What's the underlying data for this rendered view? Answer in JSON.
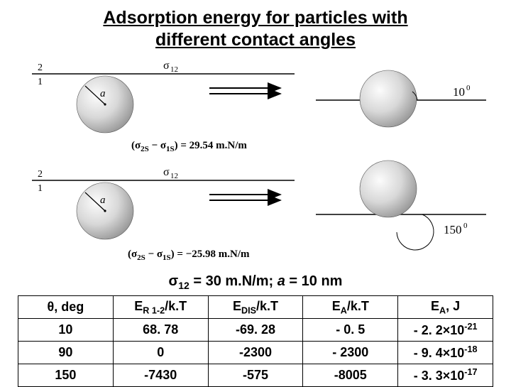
{
  "title_line1": "Adsorption energy for particles with",
  "title_line2": "different contact angles",
  "diagram": {
    "sigma_label": "σ",
    "sigma_sub": "12",
    "phase_top": "2",
    "phase_bottom": "1",
    "radius_label": "a",
    "angle_1": "10",
    "angle_1_unit": "0",
    "angle_2": "150",
    "angle_2_unit": "0",
    "eq1_lhs": "(σ",
    "eq1_2s": "2S",
    "eq1_dash": " − σ",
    "eq1_1s": "1S",
    "eq1_rhs": ") = 29.54 ",
    "eq1_unit": "m.N/m",
    "eq2_lhs": "(σ",
    "eq2_rhs": ") = −25.98 ",
    "eq2_unit": "m.N/m",
    "colors": {
      "line": "#000000",
      "sphere_fill_light": "#fcfcfc",
      "sphere_fill_dark": "#a8a8a8",
      "bg": "#ffffff"
    }
  },
  "mid": {
    "pre": "σ",
    "sub": "12",
    "post": " = 30 m.N/m; ",
    "a_italic": "a",
    "tail": " = 10 nm"
  },
  "table": {
    "columns": [
      {
        "html": "θ, deg"
      },
      {
        "html": "E<span class='sub'>R 1-2</span>/k.T"
      },
      {
        "html": "E<span class='sub'>DIS</span>/k.T"
      },
      {
        "html": "E<span class='sub'>A</span>/k.T"
      },
      {
        "html": "E<span class='sub'>A</span>, J"
      }
    ],
    "rows": [
      [
        "10",
        "68. 78",
        "-69. 28",
        "- 0. 5",
        "- 2. 2×10<span class='sup'>-21</span>"
      ],
      [
        "90",
        "0",
        "-2300",
        "- 2300",
        "- 9. 4×10<span class='sup'>-18</span>"
      ],
      [
        "150",
        "-7430",
        "-575",
        "-8005",
        "- 3. 3×10<span class='sup'>-17</span>"
      ]
    ],
    "border_color": "#000000",
    "font_size": 18,
    "font_weight": "bold"
  }
}
